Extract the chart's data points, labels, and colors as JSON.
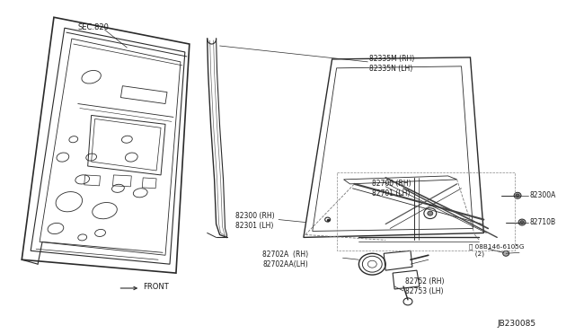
{
  "bg_color": "#ffffff",
  "line_color": "#2a2a2a",
  "text_color": "#1a1a1a",
  "figsize": [
    6.4,
    3.72
  ],
  "dpi": 100,
  "labels": {
    "sec820": "SEC.820",
    "front": "FRONT",
    "r82335": "82335M (RH)\n82335N (LH)",
    "r82300": "82300 (RH)\n82301 (LH)",
    "r82700": "82700 (RH)\n82701 (LH)",
    "r82300A": "82300A",
    "r82702A": "82702A  (RH)\n82702AA(LH)",
    "r82710B": "82710B",
    "r08B146": "08B146-6105G\n   (2)",
    "r82752": "82752 (RH)\n82753 (LH)",
    "JB230085": "JB230085"
  }
}
